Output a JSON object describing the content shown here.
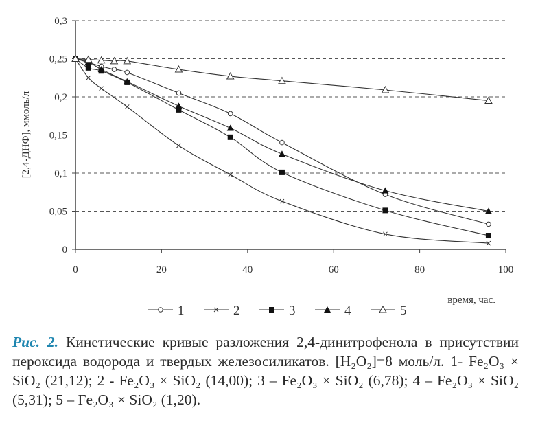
{
  "chart_data": {
    "type": "line",
    "title": "",
    "xlabel": "время, час.",
    "ylabel": "[2,4-ДНФ], ммоль/л",
    "xlim": [
      0,
      100
    ],
    "ylim": [
      0,
      0.3
    ],
    "xticks": [
      "0",
      "20",
      "40",
      "60",
      "80",
      "100"
    ],
    "xtick_values": [
      0,
      20,
      40,
      60,
      80,
      100
    ],
    "yticks": [
      "0",
      "0,05",
      "0,1",
      "0,15",
      "0,2",
      "0,25",
      "0,3"
    ],
    "ytick_values": [
      0,
      0.05,
      0.1,
      0.15,
      0.2,
      0.25,
      0.3
    ],
    "grid": "horizontal dashed",
    "legend_position": "bottom",
    "series": [
      {
        "name": "1",
        "marker": "open-circle",
        "x": [
          0,
          3,
          6,
          9,
          12,
          24,
          36,
          48,
          72,
          96
        ],
        "y": [
          0.25,
          0.245,
          0.24,
          0.236,
          0.232,
          0.205,
          0.178,
          0.14,
          0.072,
          0.033
        ]
      },
      {
        "name": "2",
        "marker": "cross",
        "x": [
          0,
          3,
          6,
          12,
          24,
          36,
          48,
          72,
          96
        ],
        "y": [
          0.25,
          0.225,
          0.211,
          0.187,
          0.136,
          0.098,
          0.063,
          0.02,
          0.008
        ]
      },
      {
        "name": "3",
        "marker": "filled-square",
        "x": [
          0,
          3,
          6,
          12,
          24,
          36,
          48,
          72,
          96
        ],
        "y": [
          0.25,
          0.238,
          0.234,
          0.219,
          0.183,
          0.147,
          0.101,
          0.051,
          0.018
        ]
      },
      {
        "name": "4",
        "marker": "filled-triangle",
        "x": [
          0,
          3,
          6,
          12,
          24,
          36,
          48,
          72,
          96
        ],
        "y": [
          0.25,
          0.246,
          0.236,
          0.22,
          0.188,
          0.159,
          0.125,
          0.077,
          0.05
        ]
      },
      {
        "name": "5",
        "marker": "open-triangle",
        "x": [
          0,
          3,
          6,
          9,
          12,
          24,
          36,
          48,
          72,
          96
        ],
        "y": [
          0.25,
          0.249,
          0.248,
          0.247,
          0.247,
          0.236,
          0.227,
          0.221,
          0.209,
          0.195
        ]
      }
    ]
  },
  "caption": {
    "label": "Рис. 2.",
    "text": " Кинетические кривые разложения 2,4-динитрофенола в присутствии пероксида водорода и твердых железосиликатов. [H₂O₂]=8 моль/л. 1- Fe₂O₃ × SiO₂ (21,12); 2 - Fe₂O₃ × SiO₂ (14,00); 3 – Fe₂O₃ × SiO₂ (6,78); 4 – Fe₂O₃ × SiO₂ (5,31); 5 – Fe₂O₃ × SiO₂ (1,20)."
  }
}
